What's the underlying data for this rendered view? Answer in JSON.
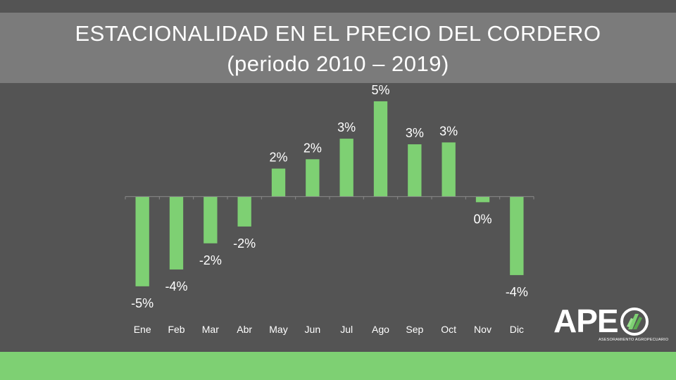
{
  "slide": {
    "title_line_1": "ESTACIONALIDAD EN EL PRECIO DEL CORDERO",
    "title_line_2": "(periodo 2010 – 2019)"
  },
  "logo": {
    "text": "APE",
    "subtitle": "ASESORAMIENTO AGROPECUARIO",
    "emblem_icon": "leaf-circle-icon"
  },
  "colors": {
    "background": "#545454",
    "title_band": "#7b7b7b",
    "bar": "#7ed073",
    "footer_band": "#7ed073",
    "text": "#ffffff",
    "axis": "#8a8a8a"
  },
  "chart_data": {
    "type": "bar",
    "title": "ESTACIONALIDAD EN EL PRECIO DEL CORDERO (periodo 2010 – 2019)",
    "xlabel": "",
    "ylabel": "",
    "categories": [
      "Ene",
      "Feb",
      "Mar",
      "Abr",
      "May",
      "Jun",
      "Jul",
      "Ago",
      "Sep",
      "Oct",
      "Nov",
      "Dic"
    ],
    "values": [
      -4.8,
      -3.9,
      -2.5,
      -1.6,
      1.5,
      2.0,
      3.1,
      5.1,
      2.8,
      2.9,
      -0.3,
      -4.2
    ],
    "data_labels": [
      "-5%",
      "-4%",
      "-2%",
      "-2%",
      "2%",
      "2%",
      "3%",
      "5%",
      "3%",
      "3%",
      "0%",
      "-4%"
    ],
    "ylim": [
      -6.5,
      5.4
    ],
    "grid": false,
    "legend": "none"
  }
}
